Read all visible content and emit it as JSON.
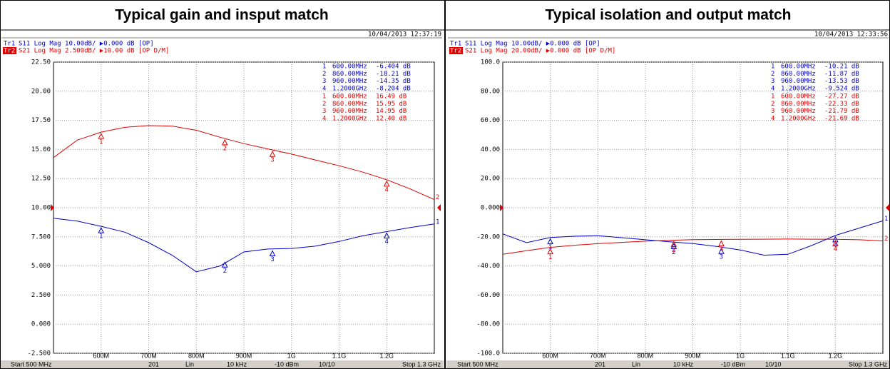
{
  "chart_data": [
    {
      "type": "line",
      "title": "Typical gain and insput match",
      "timestamp": "10/04/2013 12:37:19",
      "x": [
        500,
        550,
        600,
        650,
        700,
        750,
        800,
        850,
        900,
        950,
        1000,
        1050,
        1100,
        1150,
        1200,
        1250,
        1300
      ],
      "xlim": [
        500,
        1300
      ],
      "xticks": [
        {
          "value": 600,
          "label": "600M"
        },
        {
          "value": 700,
          "label": "700M"
        },
        {
          "value": 800,
          "label": "800M"
        },
        {
          "value": 900,
          "label": "900M"
        },
        {
          "value": 1000,
          "label": "1G"
        },
        {
          "value": 1100,
          "label": "1.1G"
        },
        {
          "value": 1200,
          "label": "1.2G"
        }
      ],
      "ylim": [
        -2.5,
        22.5
      ],
      "yticks": [
        {
          "value": 22.5,
          "label": "22.50"
        },
        {
          "value": 20,
          "label": "20.00"
        },
        {
          "value": 17.5,
          "label": "17.50"
        },
        {
          "value": 15,
          "label": "15.00"
        },
        {
          "value": 12.5,
          "label": "12.50"
        },
        {
          "value": 10,
          "label": "10.00"
        },
        {
          "value": 7.5,
          "label": "7.500"
        },
        {
          "value": 5,
          "label": "5.000"
        },
        {
          "value": 2.5,
          "label": "2.500"
        },
        {
          "value": 0,
          "label": "0.000"
        },
        {
          "value": -2.5,
          "label": "-2.500"
        }
      ],
      "y2lim": [
        -50,
        50
      ],
      "grid": true,
      "series": [
        {
          "trace": "Tr1",
          "header": "S11 Log Mag 10.00dB/ ▶0.000 dB [OP]",
          "end_label": "1",
          "color": "#0000c8",
          "axis": "y2",
          "values": [
            -3.6,
            -4.6,
            -6.404,
            -8.4,
            -12,
            -16.4,
            -22,
            -20,
            -15.2,
            -14.2,
            -14,
            -13.2,
            -11.6,
            -9.6,
            -8.204,
            -6.8,
            -5.6
          ],
          "markers": [
            {
              "id": "1",
              "x": 600,
              "x_label": "600.00MHz",
              "value": -6.404,
              "value_label": "-6.404 dB"
            },
            {
              "id": "2",
              "x": 860,
              "x_label": "860.00MHz",
              "value": -18.21,
              "value_label": "-18.21 dB"
            },
            {
              "id": "3",
              "x": 960,
              "x_label": "960.00MHz",
              "value": -14.35,
              "value_label": "-14.35 dB"
            },
            {
              "id": "4",
              "x": 1200,
              "x_label": "1.2000GHz",
              "value": -8.204,
              "value_label": "-8.204 dB"
            }
          ]
        },
        {
          "trace": "Tr2",
          "header": "S21 Log Mag 2.500dB/ ▶10.00 dB [OP D/M]",
          "end_label": "2",
          "color": "#e00000",
          "values": [
            14.3,
            15.8,
            16.49,
            16.9,
            17.05,
            17.0,
            16.65,
            16.05,
            15.5,
            15.05,
            14.6,
            14.1,
            13.6,
            13.05,
            12.4,
            11.6,
            10.7
          ],
          "markers": [
            {
              "id": "1",
              "x": 600,
              "x_label": "600.00MHz",
              "value": 16.49,
              "value_label": "16.49 dB"
            },
            {
              "id": "2",
              "x": 860,
              "x_label": "860.00MHz",
              "value": 15.95,
              "value_label": "15.95 dB"
            },
            {
              "id": "3",
              "x": 960,
              "x_label": "960.00MHz",
              "value": 14.95,
              "value_label": "14.95 dB"
            },
            {
              "id": "4",
              "x": 1200,
              "x_label": "1.2000GHz",
              "value": 12.4,
              "value_label": "12.40 dB"
            }
          ]
        }
      ],
      "footer": [
        "Start 500 MHz",
        "201",
        "Lin",
        "10 kHz",
        "-10 dBm",
        "10/10",
        "Stop 1.3 GHz"
      ]
    },
    {
      "type": "line",
      "title": "Typical isolation and output match",
      "timestamp": "10/04/2013 12:33:56",
      "x": [
        500,
        550,
        600,
        650,
        700,
        750,
        800,
        850,
        900,
        950,
        1000,
        1050,
        1100,
        1150,
        1200,
        1250,
        1300
      ],
      "xlim": [
        500,
        1300
      ],
      "xticks": [
        {
          "value": 600,
          "label": "600M"
        },
        {
          "value": 700,
          "label": "700M"
        },
        {
          "value": 800,
          "label": "800M"
        },
        {
          "value": 900,
          "label": "900M"
        },
        {
          "value": 1000,
          "label": "1G"
        },
        {
          "value": 1100,
          "label": "1.1G"
        },
        {
          "value": 1200,
          "label": "1.2G"
        }
      ],
      "ylim": [
        -100,
        100
      ],
      "yticks": [
        {
          "value": 100,
          "label": "100.0"
        },
        {
          "value": 80,
          "label": "80.00"
        },
        {
          "value": 60,
          "label": "60.00"
        },
        {
          "value": 40,
          "label": "40.00"
        },
        {
          "value": 20,
          "label": "20.00"
        },
        {
          "value": 0,
          "label": "0.000"
        },
        {
          "value": -20,
          "label": "-20.00"
        },
        {
          "value": -40,
          "label": "-40.00"
        },
        {
          "value": -60,
          "label": "-60.00"
        },
        {
          "value": -80,
          "label": "-80.00"
        },
        {
          "value": -100,
          "label": "-100.0"
        }
      ],
      "y2lim": [
        -50,
        50
      ],
      "grid": true,
      "series": [
        {
          "trace": "Tr1",
          "header": "S11 Log Mag 10.00dB/ ▶0.000 dB [OP]",
          "end_label": "1",
          "color": "#0000c8",
          "axis": "y2",
          "values": [
            -9,
            -12,
            -10.21,
            -9.8,
            -9.6,
            -10.3,
            -11,
            -11.7,
            -12.3,
            -13.3,
            -14.5,
            -16.3,
            -16,
            -13,
            -9.524,
            -7,
            -4.5
          ],
          "markers": [
            {
              "id": "1",
              "x": 600,
              "x_label": "600.00MHz",
              "value": -10.21,
              "value_label": "-10.21 dB"
            },
            {
              "id": "2",
              "x": 860,
              "x_label": "860.00MHz",
              "value": -11.87,
              "value_label": "-11.87 dB"
            },
            {
              "id": "3",
              "x": 960,
              "x_label": "960.00MHz",
              "value": -13.53,
              "value_label": "-13.53 dB"
            },
            {
              "id": "4",
              "x": 1200,
              "x_label": "1.2000GHz",
              "value": -9.524,
              "value_label": "-9.524 dB"
            }
          ]
        },
        {
          "trace": "Tr2",
          "header": "S21 Log Mag 20.00dB/ ▶0.000 dB [OP D/M]",
          "end_label": "2",
          "color": "#e00000",
          "values": [
            -32,
            -29.5,
            -27.27,
            -25.8,
            -24.7,
            -23.8,
            -23,
            -22.4,
            -21.9,
            -21.8,
            -21.7,
            -21.6,
            -21.5,
            -21.6,
            -21.69,
            -22,
            -22.8
          ],
          "markers": [
            {
              "id": "1",
              "x": 600,
              "x_label": "600.00MHz",
              "value": -27.27,
              "value_label": "-27.27 dB"
            },
            {
              "id": "2",
              "x": 860,
              "x_label": "860.00MHz",
              "value": -22.33,
              "value_label": "-22.33 dB"
            },
            {
              "id": "3",
              "x": 960,
              "x_label": "960.00MHz",
              "value": -21.79,
              "value_label": "-21.79 dB"
            },
            {
              "id": "4",
              "x": 1200,
              "x_label": "1.2000GHz",
              "value": -21.69,
              "value_label": "-21.69 dB"
            }
          ]
        }
      ],
      "footer": [
        "Start 500 MHz",
        "201",
        "Lin",
        "10 kHz",
        "-10 dBm",
        "10/10",
        "Stop 1.3 GHz"
      ]
    }
  ]
}
